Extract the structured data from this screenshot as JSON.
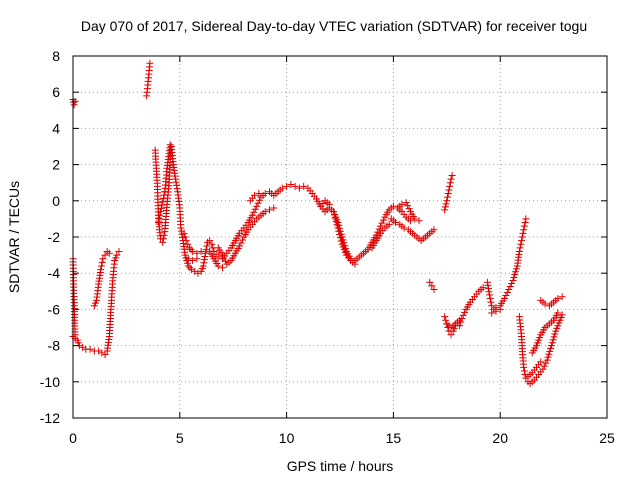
{
  "chart_data": {
    "type": "scatter",
    "title": "Day 070 of 2017, Sidereal Day-to-day VTEC variation (SDTVAR) for receiver togu",
    "xlabel": "GPS time / hours",
    "ylabel": "SDTVAR / TECUs",
    "xlim": [
      0,
      25
    ],
    "ylim": [
      -12,
      8
    ],
    "xticks": [
      0,
      5,
      10,
      15,
      20,
      25
    ],
    "yticks": [
      -12,
      -10,
      -8,
      -6,
      -4,
      -2,
      0,
      2,
      4,
      6,
      8
    ],
    "grid": true,
    "marker": "plus",
    "color": "#e00000",
    "series": [
      {
        "segments": [
          [
            [
              0.0,
              5.6
            ],
            [
              0.05,
              5.3
            ],
            [
              0.1,
              5.5
            ]
          ],
          [
            [
              0.0,
              -3.2
            ],
            [
              0.03,
              -4.6
            ],
            [
              0.06,
              -5.8
            ],
            [
              0.08,
              -6.6
            ],
            [
              0.1,
              -7.4
            ]
          ],
          [
            [
              0.0,
              -7.5
            ],
            [
              0.2,
              -7.7
            ],
            [
              0.3,
              -8.0
            ],
            [
              0.45,
              -8.1
            ],
            [
              0.6,
              -8.2
            ],
            [
              0.8,
              -8.2
            ],
            [
              1.0,
              -8.3
            ],
            [
              1.2,
              -8.3
            ],
            [
              1.35,
              -8.4
            ],
            [
              1.5,
              -8.5
            ],
            [
              1.6,
              -8.3
            ],
            [
              1.7,
              -7.5
            ],
            [
              1.75,
              -6.5
            ],
            [
              1.8,
              -5.5
            ],
            [
              1.85,
              -4.6
            ],
            [
              1.9,
              -3.9
            ],
            [
              1.95,
              -3.3
            ],
            [
              2.05,
              -3.0
            ],
            [
              2.15,
              -2.8
            ]
          ],
          [
            [
              1.0,
              -5.8
            ],
            [
              1.1,
              -5.5
            ],
            [
              1.2,
              -4.6
            ],
            [
              1.3,
              -3.8
            ],
            [
              1.4,
              -3.2
            ],
            [
              1.5,
              -3.0
            ],
            [
              1.6,
              -2.8
            ],
            [
              1.7,
              -2.9
            ]
          ],
          [
            [
              3.45,
              5.8
            ],
            [
              3.5,
              6.4
            ],
            [
              3.55,
              7.0
            ],
            [
              3.6,
              7.6
            ]
          ],
          [
            [
              3.85,
              2.8
            ],
            [
              3.9,
              1.8
            ],
            [
              3.95,
              0.8
            ],
            [
              4.0,
              -0.8
            ],
            [
              4.05,
              -1.6
            ],
            [
              4.1,
              -2.1
            ],
            [
              4.2,
              -2.3
            ],
            [
              4.3,
              -1.7
            ],
            [
              4.4,
              -0.2
            ],
            [
              4.5,
              1.0
            ],
            [
              4.55,
              2.3
            ],
            [
              4.6,
              3.0
            ],
            [
              4.7,
              2.0
            ],
            [
              4.8,
              1.2
            ],
            [
              4.9,
              0.5
            ],
            [
              5.0,
              -0.4
            ],
            [
              5.05,
              -1.5
            ],
            [
              5.15,
              -2.2
            ],
            [
              5.25,
              -3.0
            ],
            [
              5.4,
              -3.6
            ],
            [
              5.55,
              -3.8
            ],
            [
              5.7,
              -3.9
            ],
            [
              5.85,
              -4.0
            ],
            [
              6.0,
              -3.9
            ],
            [
              6.1,
              -3.6
            ],
            [
              6.2,
              -2.9
            ],
            [
              6.3,
              -2.3
            ],
            [
              6.4,
              -2.2
            ],
            [
              6.5,
              -2.4
            ],
            [
              6.6,
              -2.8
            ],
            [
              6.8,
              -3.1
            ],
            [
              7.0,
              -3.2
            ],
            [
              7.2,
              -2.9
            ],
            [
              7.4,
              -2.6
            ],
            [
              7.6,
              -2.2
            ],
            [
              7.8,
              -1.8
            ],
            [
              8.0,
              -1.5
            ],
            [
              8.2,
              -1.2
            ],
            [
              8.4,
              -0.8
            ],
            [
              8.6,
              -0.3
            ],
            [
              8.8,
              0.2
            ],
            [
              9.0,
              0.4
            ],
            [
              9.2,
              0.5
            ],
            [
              9.4,
              0.3
            ],
            [
              9.6,
              0.5
            ],
            [
              9.8,
              0.7
            ],
            [
              10.0,
              0.8
            ],
            [
              10.2,
              0.9
            ],
            [
              10.4,
              0.8
            ],
            [
              10.6,
              0.7
            ],
            [
              10.8,
              0.8
            ],
            [
              11.0,
              0.7
            ],
            [
              11.2,
              0.4
            ],
            [
              11.4,
              0.1
            ],
            [
              11.6,
              -0.3
            ],
            [
              11.8,
              -0.6
            ],
            [
              12.0,
              -0.4
            ],
            [
              12.2,
              -0.6
            ],
            [
              12.4,
              -1.2
            ],
            [
              12.6,
              -2.0
            ],
            [
              12.8,
              -2.8
            ],
            [
              13.0,
              -3.2
            ],
            [
              13.2,
              -3.3
            ],
            [
              13.4,
              -3.1
            ],
            [
              13.6,
              -2.9
            ],
            [
              13.8,
              -2.7
            ],
            [
              14.0,
              -2.3
            ],
            [
              14.2,
              -1.9
            ],
            [
              14.4,
              -1.4
            ],
            [
              14.6,
              -0.9
            ],
            [
              14.8,
              -0.5
            ],
            [
              15.0,
              -0.3
            ],
            [
              15.2,
              -0.4
            ],
            [
              15.4,
              -0.6
            ],
            [
              15.6,
              -0.9
            ],
            [
              15.8,
              -1.1
            ]
          ],
          [
            [
              4.3,
              0.5
            ],
            [
              4.4,
              1.8
            ],
            [
              4.5,
              2.6
            ],
            [
              4.55,
              3.1
            ]
          ],
          [
            [
              4.0,
              -1.2
            ],
            [
              4.1,
              -0.6
            ],
            [
              4.3,
              0.5
            ]
          ],
          [
            [
              5.2,
              -1.8
            ],
            [
              5.3,
              -2.2
            ],
            [
              5.45,
              -2.6
            ],
            [
              5.6,
              -2.8
            ],
            [
              5.8,
              -2.9
            ],
            [
              6.0,
              -2.8
            ]
          ],
          [
            [
              5.4,
              -3.2
            ],
            [
              5.6,
              -3.3
            ],
            [
              5.8,
              -3.2
            ]
          ],
          [
            [
              6.8,
              -2.6
            ],
            [
              7.0,
              -3.0
            ],
            [
              7.2,
              -3.5
            ],
            [
              7.4,
              -3.3
            ],
            [
              7.6,
              -2.9
            ],
            [
              7.8,
              -2.5
            ],
            [
              8.0,
              -2.0
            ],
            [
              8.2,
              -1.6
            ],
            [
              8.4,
              -1.3
            ],
            [
              8.6,
              -1.0
            ],
            [
              8.8,
              -0.8
            ],
            [
              9.0,
              -0.6
            ],
            [
              9.2,
              -0.5
            ],
            [
              9.4,
              -0.4
            ]
          ],
          [
            [
              6.4,
              -2.8
            ],
            [
              6.6,
              -3.2
            ],
            [
              6.8,
              -3.6
            ],
            [
              7.0,
              -3.7
            ]
          ],
          [
            [
              8.3,
              0.0
            ],
            [
              8.5,
              0.3
            ],
            [
              8.7,
              0.4
            ]
          ],
          [
            [
              11.6,
              -0.3
            ],
            [
              11.8,
              0.0
            ],
            [
              12.0,
              -0.2
            ]
          ],
          [
            [
              12.2,
              -0.6
            ],
            [
              12.4,
              -1.5
            ],
            [
              12.6,
              -2.4
            ],
            [
              12.8,
              -3.0
            ],
            [
              13.0,
              -3.3
            ],
            [
              13.2,
              -3.5
            ]
          ],
          [
            [
              14.0,
              -2.6
            ],
            [
              14.2,
              -2.2
            ],
            [
              14.4,
              -1.8
            ],
            [
              14.6,
              -1.5
            ],
            [
              14.8,
              -1.3
            ]
          ],
          [
            [
              14.9,
              -1.0
            ],
            [
              15.1,
              -1.2
            ],
            [
              15.3,
              -1.3
            ],
            [
              15.5,
              -1.5
            ],
            [
              15.7,
              -1.6
            ],
            [
              15.9,
              -1.8
            ],
            [
              16.1,
              -2.0
            ],
            [
              16.3,
              -2.2
            ],
            [
              16.5,
              -2.0
            ],
            [
              16.7,
              -1.8
            ],
            [
              16.9,
              -1.6
            ]
          ],
          [
            [
              15.2,
              -0.4
            ],
            [
              15.4,
              -0.2
            ],
            [
              15.6,
              -0.1
            ],
            [
              15.8,
              -0.6
            ],
            [
              16.0,
              -1.0
            ],
            [
              16.2,
              -1.1
            ]
          ],
          [
            [
              16.7,
              -4.5
            ],
            [
              16.8,
              -4.7
            ],
            [
              16.9,
              -4.9
            ]
          ],
          [
            [
              17.4,
              -0.5
            ],
            [
              17.5,
              0.0
            ],
            [
              17.6,
              0.6
            ],
            [
              17.7,
              1.2
            ],
            [
              17.75,
              1.4
            ]
          ],
          [
            [
              17.4,
              -6.4
            ],
            [
              17.5,
              -6.8
            ],
            [
              17.6,
              -7.2
            ],
            [
              17.7,
              -7.4
            ],
            [
              17.8,
              -7.2
            ],
            [
              17.9,
              -6.9
            ],
            [
              18.0,
              -6.7
            ],
            [
              18.1,
              -6.9
            ],
            [
              18.2,
              -6.5
            ],
            [
              18.4,
              -6.0
            ],
            [
              18.6,
              -5.6
            ],
            [
              18.8,
              -5.3
            ],
            [
              19.0,
              -5.0
            ],
            [
              19.2,
              -4.8
            ]
          ],
          [
            [
              17.5,
              -6.8
            ],
            [
              17.7,
              -7.0
            ],
            [
              17.9,
              -6.8
            ],
            [
              18.1,
              -6.6
            ]
          ],
          [
            [
              19.4,
              -4.5
            ],
            [
              19.5,
              -5.2
            ],
            [
              19.6,
              -5.8
            ],
            [
              19.7,
              -6.0
            ],
            [
              19.8,
              -5.9
            ],
            [
              20.0,
              -5.8
            ],
            [
              20.2,
              -5.4
            ],
            [
              20.4,
              -4.9
            ],
            [
              20.6,
              -4.4
            ],
            [
              20.8,
              -3.6
            ],
            [
              20.9,
              -2.8
            ],
            [
              21.0,
              -2.2
            ],
            [
              21.1,
              -1.6
            ],
            [
              21.2,
              -1.0
            ]
          ],
          [
            [
              19.6,
              -6.2
            ],
            [
              19.8,
              -6.1
            ],
            [
              20.0,
              -6.0
            ]
          ],
          [
            [
              20.9,
              -6.4
            ],
            [
              21.0,
              -7.5
            ],
            [
              21.05,
              -8.5
            ],
            [
              21.1,
              -9.2
            ],
            [
              21.2,
              -9.8
            ],
            [
              21.3,
              -10.0
            ],
            [
              21.4,
              -10.1
            ],
            [
              21.6,
              -9.9
            ],
            [
              21.8,
              -9.6
            ],
            [
              22.0,
              -9.3
            ],
            [
              22.2,
              -8.8
            ],
            [
              22.4,
              -8.0
            ],
            [
              22.6,
              -7.2
            ],
            [
              22.8,
              -6.6
            ],
            [
              22.9,
              -6.3
            ]
          ],
          [
            [
              21.3,
              -9.7
            ],
            [
              21.5,
              -9.5
            ],
            [
              21.7,
              -9.2
            ],
            [
              21.9,
              -8.9
            ]
          ],
          [
            [
              21.5,
              -8.4
            ],
            [
              21.7,
              -8.0
            ],
            [
              21.9,
              -7.4
            ],
            [
              22.1,
              -7.0
            ],
            [
              22.3,
              -6.8
            ],
            [
              22.5,
              -6.6
            ],
            [
              22.7,
              -6.2
            ]
          ],
          [
            [
              21.9,
              -5.5
            ],
            [
              22.1,
              -5.7
            ],
            [
              22.3,
              -5.8
            ],
            [
              22.5,
              -5.6
            ],
            [
              22.7,
              -5.4
            ],
            [
              22.9,
              -5.3
            ]
          ]
        ]
      }
    ]
  }
}
